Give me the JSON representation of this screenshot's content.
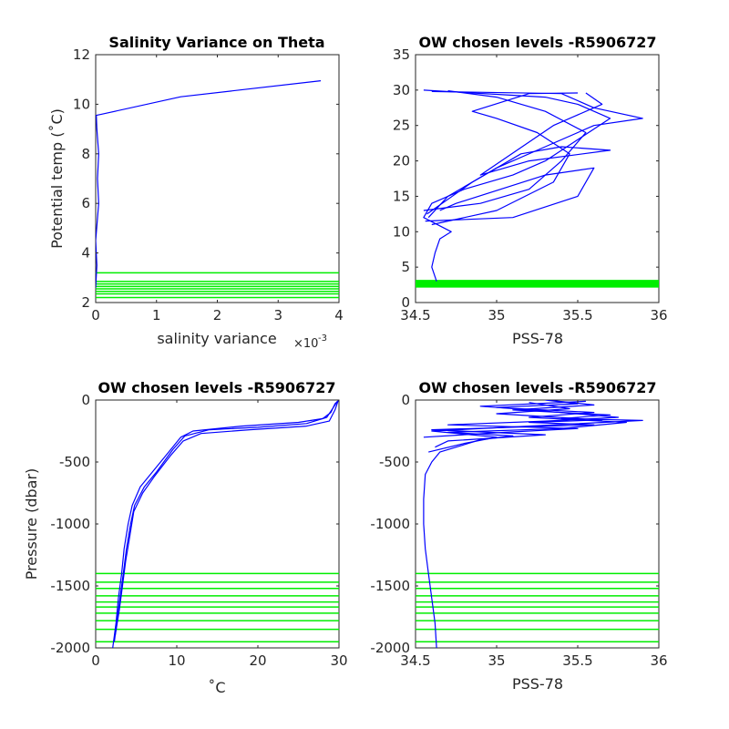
{
  "colors": {
    "profile": "#0000ff",
    "levels": "#00ee00",
    "axis": "#262626"
  },
  "chart_data": [
    {
      "id": "salvar",
      "type": "line",
      "title": "Salinity Variance on Theta",
      "xlabel": "salinity variance",
      "x_multiplier": "×10",
      "x_multiplier_exp": "-3",
      "ylabel": "Potential temp (˚C)",
      "xlim": [
        0,
        4
      ],
      "ylim": [
        2,
        12
      ],
      "xticks": [
        "0",
        "1",
        "2",
        "3",
        "4"
      ],
      "yticks": [
        "2",
        "4",
        "6",
        "8",
        "10",
        "12"
      ],
      "series": [
        {
          "points": [
            [
              0.0,
              2.6
            ],
            [
              0.02,
              3.5
            ],
            [
              0.0,
              4.5
            ],
            [
              0.05,
              6.0
            ],
            [
              0.03,
              7.0
            ],
            [
              0.05,
              8.0
            ],
            [
              0.02,
              9.0
            ],
            [
              0.01,
              9.55
            ],
            [
              0.1,
              9.6
            ],
            [
              1.4,
              10.3
            ],
            [
              3.7,
              10.95
            ]
          ]
        }
      ],
      "levels_y": [
        2.2,
        2.35,
        2.45,
        2.55,
        2.65,
        2.75,
        2.85,
        3.2
      ]
    },
    {
      "id": "ts",
      "type": "line",
      "title": "OW chosen levels -R5906727",
      "xlabel": "PSS-78",
      "ylabel": "",
      "xlim": [
        34.5,
        36
      ],
      "ylim": [
        0,
        35
      ],
      "xticks": [
        "34.5",
        "35",
        "35.5",
        "36"
      ],
      "yticks": [
        "0",
        "5",
        "10",
        "15",
        "20",
        "25",
        "30",
        "35"
      ],
      "series": [
        {
          "points": [
            [
              34.63,
              3
            ],
            [
              34.6,
              5
            ],
            [
              34.62,
              7
            ],
            [
              34.65,
              9
            ],
            [
              34.72,
              10
            ],
            [
              34.55,
              12
            ],
            [
              34.6,
              14
            ],
            [
              34.8,
              16
            ],
            [
              35.1,
              18
            ],
            [
              35.3,
              20
            ],
            [
              35.5,
              23
            ],
            [
              35.7,
              26
            ],
            [
              35.5,
              28
            ],
            [
              35.3,
              29
            ],
            [
              34.55,
              30
            ]
          ]
        },
        {
          "points": [
            [
              34.58,
              12
            ],
            [
              34.7,
              15
            ],
            [
              35.0,
              19
            ],
            [
              35.3,
              22
            ],
            [
              35.6,
              25
            ],
            [
              35.9,
              26
            ],
            [
              35.6,
              27.5
            ],
            [
              35.4,
              29.5
            ],
            [
              34.6,
              29.8
            ]
          ]
        },
        {
          "points": [
            [
              34.55,
              13
            ],
            [
              34.9,
              14
            ],
            [
              35.2,
              16
            ],
            [
              35.4,
              20
            ],
            [
              35.55,
              24
            ],
            [
              35.3,
              27
            ],
            [
              35.0,
              29
            ],
            [
              34.7,
              29.9
            ]
          ]
        },
        {
          "points": [
            [
              34.6,
              11
            ],
            [
              35.0,
              13
            ],
            [
              35.35,
              17
            ],
            [
              35.45,
              21
            ],
            [
              35.25,
              24
            ],
            [
              35.0,
              26
            ],
            [
              34.85,
              27
            ],
            [
              35.2,
              29.5
            ],
            [
              35.5,
              29.6
            ]
          ]
        },
        {
          "points": [
            [
              34.57,
              12.5
            ],
            [
              34.85,
              17
            ],
            [
              35.15,
              21
            ],
            [
              35.4,
              22
            ],
            [
              35.7,
              21.5
            ],
            [
              35.2,
              20
            ],
            [
              34.9,
              18
            ],
            [
              35.35,
              25
            ],
            [
              35.65,
              28
            ],
            [
              35.55,
              29.6
            ]
          ]
        },
        {
          "points": [
            [
              34.56,
              11.5
            ],
            [
              35.1,
              12
            ],
            [
              35.5,
              15
            ],
            [
              35.6,
              19
            ],
            [
              35.3,
              18
            ],
            [
              34.75,
              14
            ],
            [
              34.65,
              13
            ]
          ]
        }
      ],
      "levels_y": [
        2.2,
        2.35,
        2.5,
        2.65,
        2.8,
        2.95,
        3.1
      ]
    },
    {
      "id": "ptemp",
      "type": "line",
      "title": "OW chosen levels -R5906727",
      "xlabel": "˚C",
      "ylabel": "Pressure (dbar)",
      "xlim": [
        0,
        30
      ],
      "ylim": [
        -2000,
        0
      ],
      "xticks": [
        "0",
        "10",
        "20",
        "30"
      ],
      "yticks": [
        "-2000",
        "-1500",
        "-1000",
        "-500",
        "0"
      ],
      "series": [
        {
          "points": [
            [
              2.1,
              -2000
            ],
            [
              2.3,
              -1900
            ],
            [
              2.5,
              -1800
            ],
            [
              2.8,
              -1600
            ],
            [
              3.2,
              -1400
            ],
            [
              3.5,
              -1200
            ],
            [
              4.0,
              -1000
            ],
            [
              4.5,
              -850
            ],
            [
              5.5,
              -700
            ],
            [
              7.0,
              -580
            ],
            [
              9.0,
              -420
            ],
            [
              10.5,
              -300
            ],
            [
              12.0,
              -250
            ],
            [
              18.0,
              -210
            ],
            [
              25.0,
              -180
            ],
            [
              28.0,
              -150
            ],
            [
              29.0,
              -100
            ],
            [
              29.5,
              -30
            ],
            [
              30.0,
              0
            ]
          ]
        },
        {
          "points": [
            [
              2.3,
              -1950
            ],
            [
              2.6,
              -1800
            ],
            [
              3.0,
              -1600
            ],
            [
              3.4,
              -1400
            ],
            [
              3.8,
              -1200
            ],
            [
              4.3,
              -1000
            ],
            [
              4.8,
              -850
            ],
            [
              6.0,
              -700
            ],
            [
              7.5,
              -580
            ],
            [
              9.5,
              -400
            ],
            [
              11.0,
              -290
            ],
            [
              14.0,
              -240
            ],
            [
              20.0,
              -220
            ],
            [
              26.0,
              -190
            ],
            [
              28.5,
              -140
            ],
            [
              29.3,
              -60
            ],
            [
              29.8,
              -10
            ]
          ]
        },
        {
          "points": [
            [
              2.4,
              -1900
            ],
            [
              2.9,
              -1700
            ],
            [
              3.3,
              -1500
            ],
            [
              3.7,
              -1300
            ],
            [
              4.2,
              -1100
            ],
            [
              4.7,
              -900
            ],
            [
              5.8,
              -750
            ],
            [
              7.2,
              -620
            ],
            [
              9.2,
              -450
            ],
            [
              10.8,
              -330
            ],
            [
              13.0,
              -270
            ],
            [
              19.0,
              -240
            ],
            [
              26.0,
              -210
            ],
            [
              28.8,
              -170
            ],
            [
              29.5,
              -80
            ],
            [
              29.9,
              -5
            ]
          ]
        }
      ],
      "levels_y": [
        -1950,
        -1850,
        -1780,
        -1720,
        -1670,
        -1630,
        -1580,
        -1520,
        -1470,
        -1400
      ]
    },
    {
      "id": "psal",
      "type": "line",
      "title": "OW chosen levels -R5906727",
      "xlabel": "PSS-78",
      "ylabel": "",
      "xlim": [
        34.5,
        36
      ],
      "ylim": [
        -2000,
        0
      ],
      "xticks": [
        "34.5",
        "35",
        "35.5",
        "36"
      ],
      "yticks": [
        "-2000",
        "-1500",
        "-1000",
        "-500",
        "0"
      ],
      "series": [
        {
          "points": [
            [
              34.63,
              -2000
            ],
            [
              34.62,
              -1800
            ],
            [
              34.6,
              -1600
            ],
            [
              34.58,
              -1400
            ],
            [
              34.56,
              -1200
            ],
            [
              34.55,
              -1000
            ],
            [
              34.55,
              -800
            ],
            [
              34.56,
              -600
            ],
            [
              34.6,
              -500
            ],
            [
              34.65,
              -420
            ],
            [
              34.75,
              -380
            ],
            [
              34.9,
              -320
            ],
            [
              35.1,
              -290
            ],
            [
              34.7,
              -260
            ],
            [
              35.4,
              -230
            ],
            [
              35.8,
              -180
            ],
            [
              35.2,
              -140
            ],
            [
              35.6,
              -100
            ],
            [
              35.0,
              -60
            ],
            [
              35.5,
              -30
            ],
            [
              35.3,
              0
            ]
          ]
        },
        {
          "points": [
            [
              34.58,
              -420
            ],
            [
              34.8,
              -350
            ],
            [
              35.0,
              -300
            ],
            [
              34.6,
              -250
            ],
            [
              35.2,
              -210
            ],
            [
              35.9,
              -165
            ],
            [
              35.4,
              -150
            ],
            [
              35.7,
              -120
            ],
            [
              35.1,
              -80
            ],
            [
              35.6,
              -40
            ],
            [
              35.35,
              -5
            ]
          ]
        },
        {
          "points": [
            [
              34.62,
              -380
            ],
            [
              34.7,
              -330
            ],
            [
              35.3,
              -280
            ],
            [
              34.6,
              -240
            ],
            [
              35.6,
              -200
            ],
            [
              35.2,
              -180
            ],
            [
              35.65,
              -160
            ],
            [
              35.0,
              -110
            ],
            [
              35.45,
              -70
            ],
            [
              35.2,
              -20
            ]
          ]
        },
        {
          "points": [
            [
              34.55,
              -300
            ],
            [
              35.05,
              -260
            ],
            [
              35.5,
              -230
            ],
            [
              34.7,
              -200
            ],
            [
              35.3,
              -170
            ],
            [
              35.75,
              -140
            ],
            [
              35.3,
              -90
            ],
            [
              34.9,
              -50
            ],
            [
              35.55,
              -10
            ]
          ]
        }
      ],
      "levels_y": [
        -1950,
        -1850,
        -1780,
        -1720,
        -1670,
        -1630,
        -1580,
        -1520,
        -1470,
        -1400
      ]
    }
  ]
}
